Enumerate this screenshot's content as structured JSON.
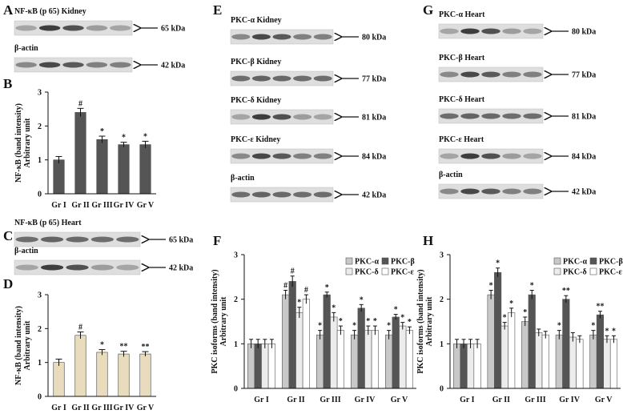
{
  "letters": [
    "A",
    "B",
    "C",
    "D",
    "E",
    "F",
    "G",
    "H"
  ],
  "blots": {
    "A": [
      {
        "label": "NF-κB (p 65) Kidney",
        "size": "65 kDa"
      },
      {
        "label": "β-actin",
        "size": "42 kDa"
      }
    ],
    "C": [
      {
        "label": "NF-κB (p 65) Heart",
        "size": "65 kDa"
      },
      {
        "label": "β-actin",
        "size": "42 kDa"
      }
    ],
    "E": [
      {
        "label": "PKC-α Kidney",
        "size": "80 kDa"
      },
      {
        "label": "PKC-β Kidney",
        "size": "77 kDa"
      },
      {
        "label": "PKC-δ Kidney",
        "size": "81 kDa"
      },
      {
        "label": "PKC-ε Kidney",
        "size": "84 kDa"
      },
      {
        "label": "β-actin",
        "size": "42 kDa"
      }
    ],
    "G": [
      {
        "label": "PKC-α Heart",
        "size": "80 kDa"
      },
      {
        "label": "PKC-β Heart",
        "size": "77 kDa"
      },
      {
        "label": "PKC-δ Heart",
        "size": "81 kDa"
      },
      {
        "label": "PKC-ε Heart",
        "size": "84 kDa"
      },
      {
        "label": "β-actin",
        "size": "42 kDa"
      }
    ]
  },
  "chart_data": [
    {
      "type": "bar",
      "ylabel": [
        "NF-κB (band intensity)",
        "Arbitrary unit"
      ],
      "categories": [
        "Gr I",
        "Gr II",
        "Gr III",
        "Gr IV",
        "Gr V"
      ],
      "color": "#555555",
      "values": [
        1.0,
        2.4,
        1.6,
        1.45,
        1.45
      ],
      "errors": [
        0.1,
        0.12,
        0.1,
        0.07,
        0.1
      ],
      "annotations": [
        null,
        "#",
        "*",
        "*",
        "*"
      ],
      "ylim": [
        0,
        3
      ],
      "yticks": [
        0,
        1,
        2,
        3
      ]
    },
    {
      "type": "bar",
      "ylabel": [
        "NF-κB (band intensity)",
        "Arbitrary unit"
      ],
      "categories": [
        "Gr I",
        "Gr II",
        "Gr III",
        "Gr IV",
        "Gr V"
      ],
      "color": "#e9dcbd",
      "values": [
        1.0,
        1.8,
        1.3,
        1.25,
        1.25
      ],
      "errors": [
        0.1,
        0.1,
        0.08,
        0.08,
        0.07
      ],
      "annotations": [
        null,
        "#",
        "*",
        "**",
        "**"
      ],
      "ylim": [
        0,
        3
      ],
      "yticks": [
        0,
        1,
        2,
        3
      ]
    },
    {
      "type": "grouped_bar",
      "ylabel": [
        "PKC isoforms (band intensity)",
        "Arbitrary unit"
      ],
      "categories": [
        "Gr I",
        "Gr II",
        "Gr III",
        "Gr IV",
        "Gr V"
      ],
      "ylim": [
        0,
        3
      ],
      "yticks": [
        0,
        1,
        2,
        3
      ],
      "series": [
        {
          "name": "PKC-α",
          "color": "#c8c8c8",
          "values": [
            1.0,
            2.1,
            1.2,
            1.2,
            1.2
          ],
          "errors": [
            0.1,
            0.1,
            0.1,
            0.1,
            0.1
          ],
          "annotations": [
            null,
            "#",
            "*",
            "*",
            "*"
          ]
        },
        {
          "name": "PKC-β",
          "color": "#555555",
          "values": [
            1.0,
            2.4,
            2.1,
            1.8,
            1.6
          ],
          "errors": [
            0.1,
            0.12,
            0.06,
            0.08,
            0.06
          ],
          "annotations": [
            null,
            "#",
            "*",
            "*",
            "*"
          ]
        },
        {
          "name": "PKC-δ",
          "color": "#ececec",
          "values": [
            1.0,
            1.7,
            1.6,
            1.3,
            1.4
          ],
          "errors": [
            0.1,
            0.12,
            0.1,
            0.1,
            0.08
          ],
          "annotations": [
            null,
            "*",
            "*",
            "*",
            "*"
          ]
        },
        {
          "name": "PKC-ε",
          "color": "#ffffff",
          "values": [
            1.0,
            2.0,
            1.3,
            1.3,
            1.3
          ],
          "errors": [
            0.1,
            0.1,
            0.1,
            0.1,
            0.08
          ],
          "annotations": [
            null,
            "#",
            "*",
            "*",
            "*"
          ]
        }
      ]
    },
    {
      "type": "grouped_bar",
      "ylabel": [
        "PKC isoforms (band intensity)",
        "Arbitrary unit"
      ],
      "categories": [
        "Gr I",
        "Gr II",
        "Gr III",
        "Gr IV",
        "Gr V"
      ],
      "ylim": [
        0,
        3
      ],
      "yticks": [
        0,
        1,
        2,
        3
      ],
      "series": [
        {
          "name": "PKC-α",
          "color": "#c8c8c8",
          "values": [
            1.0,
            2.1,
            1.5,
            1.2,
            1.2
          ],
          "errors": [
            0.1,
            0.1,
            0.1,
            0.1,
            0.1
          ],
          "annotations": [
            null,
            "*",
            "*",
            "*",
            "*"
          ]
        },
        {
          "name": "PKC-β",
          "color": "#555555",
          "values": [
            1.0,
            2.6,
            2.1,
            2.0,
            1.65
          ],
          "errors": [
            0.1,
            0.1,
            0.1,
            0.08,
            0.08
          ],
          "annotations": [
            null,
            "*",
            "*",
            "**",
            "**"
          ]
        },
        {
          "name": "PKC-δ",
          "color": "#ececec",
          "values": [
            1.0,
            1.4,
            1.25,
            1.15,
            1.1
          ],
          "errors": [
            0.1,
            0.08,
            0.08,
            0.1,
            0.08
          ],
          "annotations": [
            null,
            "*",
            null,
            null,
            "*"
          ]
        },
        {
          "name": "PKC-ε",
          "color": "#ffffff",
          "values": [
            1.0,
            1.7,
            1.2,
            1.1,
            1.1
          ],
          "errors": [
            0.1,
            0.1,
            0.08,
            0.08,
            0.08
          ],
          "annotations": [
            null,
            "*",
            null,
            null,
            "*"
          ]
        }
      ]
    }
  ]
}
